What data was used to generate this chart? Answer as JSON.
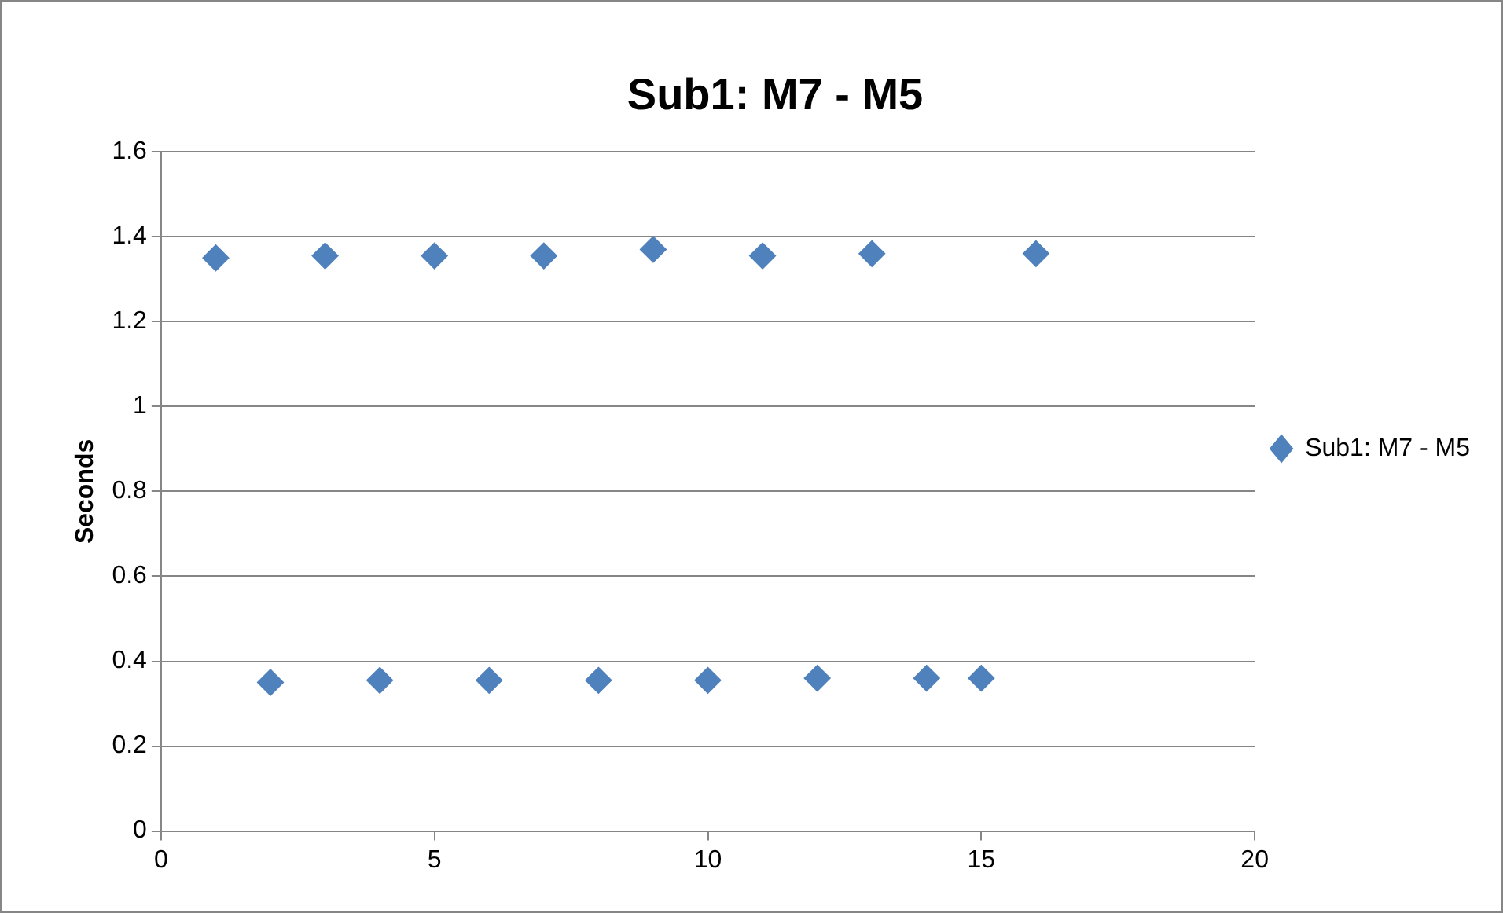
{
  "chart_data": {
    "type": "scatter",
    "title": "Sub1: M7 - M5",
    "ylabel": "Seconds",
    "x": [
      1,
      2,
      3,
      4,
      5,
      6,
      7,
      8,
      9,
      10,
      11,
      12,
      13,
      14,
      15,
      16
    ],
    "series": [
      {
        "name": "Sub1: M7 - M5",
        "color": "#4f81bd",
        "values": [
          1.35,
          0.35,
          1.355,
          0.355,
          1.355,
          0.355,
          1.355,
          0.355,
          1.37,
          0.355,
          1.355,
          0.36,
          1.36,
          0.36,
          0.36,
          1.36
        ]
      }
    ],
    "xlim": [
      0,
      20
    ],
    "xticks": [
      0,
      5,
      10,
      15,
      20
    ],
    "ylim": [
      0,
      1.6
    ],
    "yticks": [
      0,
      0.2,
      0.4,
      0.6,
      0.8,
      1,
      1.2,
      1.4,
      1.6
    ],
    "grid": "y",
    "legend": "right",
    "marker": "diamond"
  }
}
